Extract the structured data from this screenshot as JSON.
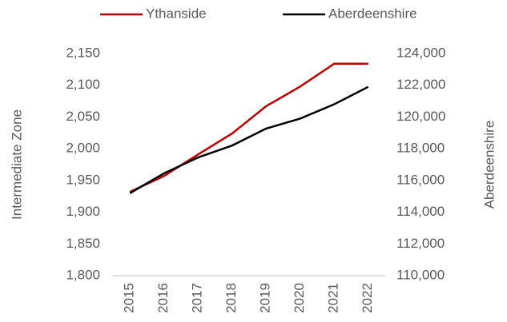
{
  "chart_data": {
    "type": "line",
    "categories": [
      "2015",
      "2016",
      "2017",
      "2018",
      "2019",
      "2020",
      "2021",
      "2022"
    ],
    "series": [
      {
        "name": "Ythanside",
        "color": "#c00000",
        "axis": "y",
        "values": [
          1932,
          1957,
          1991,
          2024,
          2067,
          2098,
          2134,
          2134
        ]
      },
      {
        "name": "Aberdeenshire",
        "color": "#000000",
        "axis": "y2",
        "values": [
          115200,
          116450,
          117450,
          118200,
          119270,
          119900,
          120800,
          121900
        ]
      }
    ],
    "ylabel": "Intermediate Zone",
    "y2label": "Aberdeenshire",
    "ylim": [
      1800,
      2150
    ],
    "yticks": [
      {
        "value": 1800,
        "label": "1,800"
      },
      {
        "value": 1850,
        "label": "1,850"
      },
      {
        "value": 1900,
        "label": "1,900"
      },
      {
        "value": 1950,
        "label": "1,950"
      },
      {
        "value": 2000,
        "label": "2,000"
      },
      {
        "value": 2050,
        "label": "2,050"
      },
      {
        "value": 2100,
        "label": "2,100"
      },
      {
        "value": 2150,
        "label": "2,150"
      }
    ],
    "y2lim": [
      110000,
      124000
    ],
    "y2ticks": [
      {
        "value": 110000,
        "label": "110,000"
      },
      {
        "value": 112000,
        "label": "112,000"
      },
      {
        "value": 114000,
        "label": "114,000"
      },
      {
        "value": 116000,
        "label": "116,000"
      },
      {
        "value": 118000,
        "label": "118,000"
      },
      {
        "value": 120000,
        "label": "120,000"
      },
      {
        "value": 122000,
        "label": "122,000"
      },
      {
        "value": 124000,
        "label": "124,000"
      }
    ],
    "legend": "top"
  }
}
